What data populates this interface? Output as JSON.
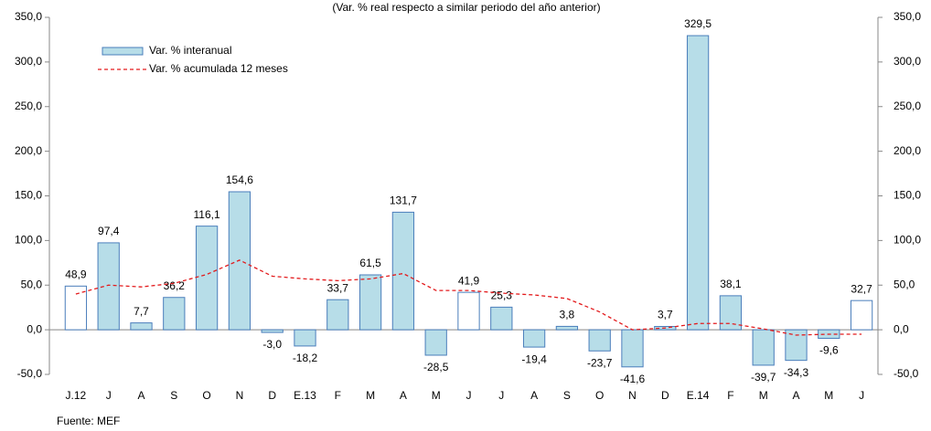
{
  "chart_data": {
    "type": "bar",
    "title": "(Var. % real respecto a similar periodo del año anterior)",
    "source": "Fuente: MEF",
    "categories": [
      "J.12",
      "J",
      "A",
      "S",
      "O",
      "N",
      "D",
      "E.13",
      "F",
      "M",
      "A",
      "M",
      "J",
      "J",
      "A",
      "S",
      "O",
      "N",
      "D",
      "E.14",
      "F",
      "M",
      "A",
      "M",
      "J"
    ],
    "series": [
      {
        "name": "Var. % interanual",
        "type": "bar",
        "color": "#b7dde8",
        "colors": [
          "#ffffff",
          "#b7dde8",
          "#b7dde8",
          "#b7dde8",
          "#b7dde8",
          "#b7dde8",
          "#b7dde8",
          "#b7dde8",
          "#b7dde8",
          "#b7dde8",
          "#b7dde8",
          "#b7dde8",
          "#ffffff",
          "#b7dde8",
          "#b7dde8",
          "#b7dde8",
          "#b7dde8",
          "#b7dde8",
          "#b7dde8",
          "#b7dde8",
          "#b7dde8",
          "#b7dde8",
          "#b7dde8",
          "#b7dde8",
          "#ffffff"
        ],
        "values": [
          48.9,
          97.4,
          7.7,
          36.2,
          116.1,
          154.6,
          -3.0,
          -18.2,
          33.7,
          61.5,
          131.7,
          -28.5,
          41.9,
          25.3,
          -19.4,
          3.8,
          -23.7,
          -41.6,
          3.7,
          329.5,
          38.1,
          -39.7,
          -34.3,
          -9.6,
          32.7
        ],
        "value_labels": [
          "48,9",
          "97,4",
          "7,7",
          "36,2",
          "116,1",
          "154,6",
          "-3,0",
          "-18,2",
          "33,7",
          "61,5",
          "131,7",
          "-28,5",
          "41,9",
          "25,3",
          "-19,4",
          "3,8",
          "-23,7",
          "-41,6",
          "3,7",
          "329,5",
          "38,1",
          "-39,7",
          "-34,3",
          "-9,6",
          "32,7"
        ]
      },
      {
        "name": "Var. % acumulada 12 meses",
        "type": "line",
        "color": "#e31a1c",
        "dashed": true,
        "values": [
          40,
          50,
          48,
          52,
          62,
          78,
          60,
          57,
          55,
          57,
          63,
          44,
          44,
          41,
          39,
          35,
          20,
          0,
          2,
          7,
          7,
          1,
          -6,
          -5,
          -5
        ]
      }
    ],
    "ylim": [
      -50,
      350
    ],
    "yticks": [
      {
        "value": -50,
        "label": "-50,0"
      },
      {
        "value": 0,
        "label": "0,0"
      },
      {
        "value": 50,
        "label": "50,0"
      },
      {
        "value": 100,
        "label": "100,0"
      },
      {
        "value": 150,
        "label": "150,0"
      },
      {
        "value": 200,
        "label": "200,0"
      },
      {
        "value": 250,
        "label": "250,0"
      },
      {
        "value": 300,
        "label": "300,0"
      },
      {
        "value": 350,
        "label": "350,0"
      }
    ],
    "y2lim": [
      -50,
      350
    ],
    "y2ticks": [
      {
        "value": -50,
        "label": "-50,0"
      },
      {
        "value": 0,
        "label": "0,0"
      },
      {
        "value": 50,
        "label": "50,0"
      },
      {
        "value": 100,
        "label": "100,0"
      },
      {
        "value": 150,
        "label": "150,0"
      },
      {
        "value": 200,
        "label": "200,0"
      },
      {
        "value": 250,
        "label": "250,0"
      },
      {
        "value": 300,
        "label": "300,0"
      },
      {
        "value": 350,
        "label": "350,0"
      }
    ],
    "grid": false
  }
}
